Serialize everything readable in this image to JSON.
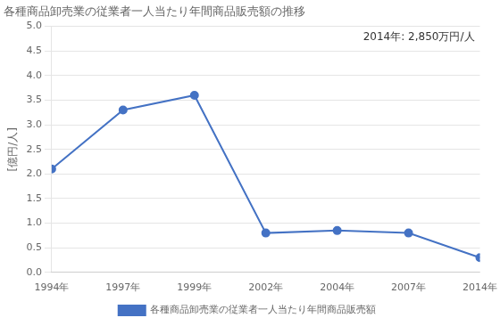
{
  "chart_data": {
    "type": "line",
    "title": "各種商品卸売業の従業者一人当たり年間商品販売額の推移",
    "y_label": "[億円/人]",
    "categories": [
      "1994年",
      "1997年",
      "1999年",
      "2002年",
      "2004年",
      "2007年",
      "2014年"
    ],
    "series": [
      {
        "name": "各種商品卸売業の従業者一人当たり年間商品販売額",
        "color": "#4472C4",
        "marker": "circle",
        "line_style": "solid",
        "values": [
          2.1,
          3.3,
          3.6,
          0.8,
          0.85,
          0.8,
          0.3
        ]
      }
    ],
    "ylim": [
      0.0,
      5.0
    ],
    "yticks": [
      {
        "value": 0.0,
        "label": "0.0"
      },
      0.5,
      {
        "value": 1.0,
        "label": "1.0"
      },
      1.5,
      {
        "value": 2.0,
        "label": "2.0"
      },
      2.5,
      {
        "value": 3.0,
        "label": "3.0"
      },
      3.5,
      {
        "value": 4.0,
        "label": "4.0"
      },
      4.5,
      {
        "value": 5.0,
        "label": "5.0"
      }
    ],
    "annotations": [
      "2014年: 2,850万円/人"
    ],
    "grid": true,
    "legend": "bottom"
  }
}
